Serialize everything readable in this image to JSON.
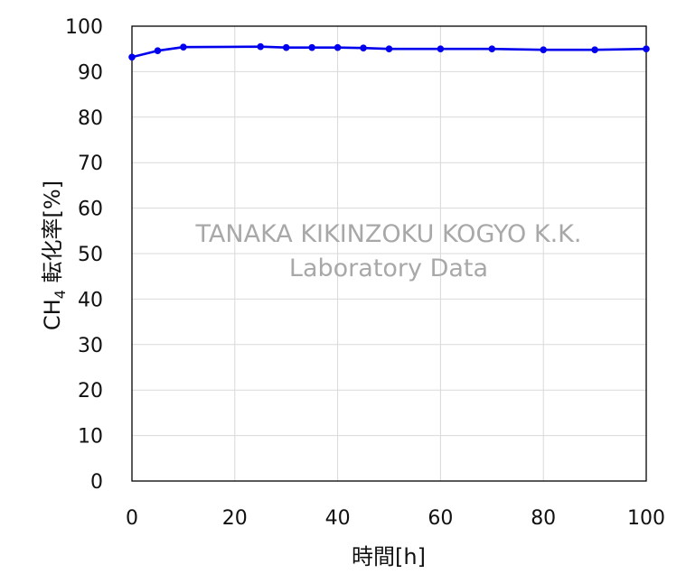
{
  "chart_data": {
    "type": "line",
    "title": "",
    "xlabel": "時間[h]",
    "ylabel_main": "CH",
    "ylabel_sub": "4",
    "ylabel_rest": " 転化率[%]",
    "xlim": [
      0,
      100
    ],
    "ylim": [
      0,
      100
    ],
    "x_ticks": [
      0,
      20,
      40,
      60,
      80,
      100
    ],
    "y_ticks": [
      0,
      10,
      20,
      30,
      40,
      50,
      60,
      70,
      80,
      90,
      100
    ],
    "grid": true,
    "legend": "none",
    "series": [
      {
        "color": "#0000ee",
        "x": [
          0,
          5,
          10,
          25,
          30,
          35,
          40,
          45,
          50,
          60,
          70,
          80,
          90,
          100
        ],
        "y": [
          93.2,
          94.6,
          95.4,
          95.5,
          95.3,
          95.3,
          95.3,
          95.2,
          95.0,
          95.0,
          95.0,
          94.8,
          94.8,
          95.0
        ]
      }
    ],
    "watermark": {
      "line1": "TANAKA KIKINZOKU KOGYO K.K.",
      "line2": "Laboratory Data"
    }
  }
}
